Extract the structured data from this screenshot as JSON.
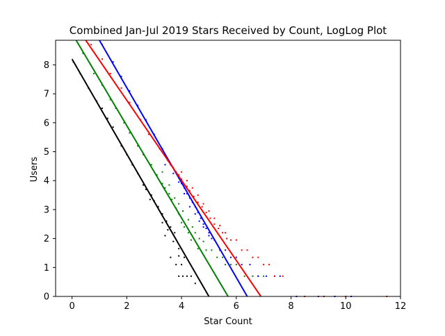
{
  "chart_data": {
    "type": "scatter",
    "title": "Combined Jan-Jul 2019 Stars Received by Count, LogLog Plot",
    "xlabel": "Star Count",
    "ylabel": "Users",
    "xlim": [
      -0.6,
      12
    ],
    "ylim": [
      0,
      8.85
    ],
    "xticks": [
      "0",
      "2",
      "4",
      "6",
      "8",
      "10",
      "12"
    ],
    "yticks": [
      "0",
      "1",
      "2",
      "3",
      "4",
      "5",
      "6",
      "7",
      "8"
    ],
    "grid": false,
    "legend": "none",
    "series": [
      {
        "color": "#000000",
        "fit_line": {
          "x": [
            0,
            5.0
          ],
          "y": [
            8.2,
            0
          ]
        },
        "points": [
          [
            0.05,
            8.1
          ],
          [
            0.3,
            7.7
          ],
          [
            0.6,
            7.2
          ],
          [
            0.9,
            6.75
          ],
          [
            1.1,
            6.5
          ],
          [
            1.3,
            6.15
          ],
          [
            1.5,
            5.85
          ],
          [
            1.8,
            5.2
          ],
          [
            2.0,
            4.9
          ],
          [
            2.2,
            4.55
          ],
          [
            2.4,
            4.25
          ],
          [
            2.6,
            3.85
          ],
          [
            2.7,
            3.7
          ],
          [
            2.9,
            3.5
          ],
          [
            3.0,
            3.3
          ],
          [
            3.15,
            3.1
          ],
          [
            3.3,
            2.85
          ],
          [
            3.45,
            2.6
          ],
          [
            3.6,
            2.4
          ],
          [
            3.75,
            2.2
          ],
          [
            2.85,
            3.35
          ],
          [
            3.3,
            2.55
          ],
          [
            3.5,
            2.3
          ],
          [
            3.4,
            2.1
          ],
          [
            3.7,
            1.9
          ],
          [
            3.9,
            1.65
          ],
          [
            3.6,
            1.35
          ],
          [
            3.9,
            1.4
          ],
          [
            4.1,
            1.35
          ],
          [
            4.0,
            1.1
          ],
          [
            3.8,
            1.1
          ],
          [
            3.9,
            0.7
          ],
          [
            4.05,
            0.7
          ],
          [
            4.2,
            0.7
          ],
          [
            4.35,
            0.7
          ],
          [
            4.5,
            0.45
          ]
        ]
      },
      {
        "color": "#008000",
        "fit_line": {
          "x": [
            0.15,
            5.7
          ],
          "y": [
            8.85,
            0
          ]
        },
        "points": [
          [
            0.4,
            8.4
          ],
          [
            0.8,
            7.7
          ],
          [
            1.1,
            7.3
          ],
          [
            1.4,
            6.8
          ],
          [
            1.6,
            6.5
          ],
          [
            1.9,
            6.0
          ],
          [
            2.1,
            5.65
          ],
          [
            2.4,
            5.2
          ],
          [
            2.6,
            4.9
          ],
          [
            2.9,
            4.55
          ],
          [
            3.1,
            4.2
          ],
          [
            3.3,
            3.9
          ],
          [
            3.4,
            3.75
          ],
          [
            3.55,
            3.55
          ],
          [
            3.65,
            3.35
          ],
          [
            3.8,
            3.05
          ],
          [
            3.9,
            2.85
          ],
          [
            4.0,
            2.55
          ],
          [
            4.1,
            2.4
          ],
          [
            4.25,
            2.2
          ],
          [
            4.35,
            1.95
          ],
          [
            3.3,
            4.3
          ],
          [
            3.55,
            3.85
          ],
          [
            3.75,
            3.4
          ],
          [
            3.9,
            3.2
          ],
          [
            4.05,
            2.95
          ],
          [
            4.25,
            2.65
          ],
          [
            4.4,
            2.4
          ],
          [
            4.5,
            2.2
          ],
          [
            4.65,
            2.0
          ],
          [
            4.8,
            1.9
          ],
          [
            4.6,
            1.65
          ],
          [
            4.9,
            1.6
          ],
          [
            5.1,
            1.6
          ],
          [
            5.3,
            1.35
          ],
          [
            5.5,
            1.35
          ],
          [
            5.6,
            1.1
          ],
          [
            5.8,
            1.1
          ],
          [
            6.0,
            1.1
          ],
          [
            6.3,
            0.7
          ],
          [
            6.6,
            0.7
          ],
          [
            6.8,
            0.7
          ],
          [
            7.0,
            0.7
          ]
        ]
      },
      {
        "color": "#0000ff",
        "fit_line": {
          "x": [
            1.0,
            6.4
          ],
          "y": [
            8.85,
            0
          ]
        },
        "points": [
          [
            1.1,
            8.7
          ],
          [
            1.5,
            8.1
          ],
          [
            1.8,
            7.6
          ],
          [
            2.1,
            7.1
          ],
          [
            2.4,
            6.6
          ],
          [
            2.7,
            6.1
          ],
          [
            3.0,
            5.6
          ],
          [
            3.3,
            5.1
          ],
          [
            3.5,
            4.7
          ],
          [
            3.6,
            4.55
          ],
          [
            3.8,
            4.3
          ],
          [
            3.9,
            4.1
          ],
          [
            4.0,
            3.9
          ],
          [
            4.1,
            3.75
          ],
          [
            4.2,
            3.55
          ],
          [
            4.3,
            3.4
          ],
          [
            4.4,
            3.25
          ],
          [
            4.5,
            3.1
          ],
          [
            4.6,
            2.9
          ],
          [
            4.7,
            2.7
          ],
          [
            4.8,
            2.5
          ],
          [
            4.9,
            2.35
          ],
          [
            5.0,
            2.2
          ],
          [
            5.1,
            2.0
          ],
          [
            3.4,
            4.55
          ],
          [
            3.7,
            4.25
          ],
          [
            3.9,
            3.95
          ],
          [
            4.1,
            3.55
          ],
          [
            4.3,
            3.1
          ],
          [
            4.5,
            2.85
          ],
          [
            4.65,
            2.6
          ],
          [
            4.8,
            2.4
          ],
          [
            5.0,
            2.1
          ],
          [
            5.2,
            1.95
          ],
          [
            5.4,
            1.6
          ],
          [
            5.6,
            1.6
          ],
          [
            5.8,
            1.35
          ],
          [
            6.0,
            1.35
          ],
          [
            6.2,
            1.1
          ],
          [
            6.5,
            1.1
          ],
          [
            6.8,
            0.7
          ],
          [
            7.1,
            0.7
          ],
          [
            7.4,
            0.7
          ],
          [
            7.6,
            0.7
          ],
          [
            8.2,
            0
          ],
          [
            9.0,
            0
          ],
          [
            9.6,
            0
          ],
          [
            10.2,
            0
          ]
        ]
      },
      {
        "color": "#ff0000",
        "fit_line": {
          "x": [
            0.5,
            6.9
          ],
          "y": [
            8.85,
            0
          ]
        },
        "points": [
          [
            0.7,
            8.7
          ],
          [
            1.1,
            8.2
          ],
          [
            1.4,
            7.7
          ],
          [
            1.8,
            7.2
          ],
          [
            2.1,
            6.7
          ],
          [
            2.5,
            6.1
          ],
          [
            2.8,
            5.6
          ],
          [
            3.2,
            5.1
          ],
          [
            3.5,
            4.7
          ],
          [
            3.7,
            4.45
          ],
          [
            3.9,
            4.2
          ],
          [
            4.0,
            4.05
          ],
          [
            4.2,
            3.8
          ],
          [
            4.3,
            3.65
          ],
          [
            4.45,
            3.45
          ],
          [
            4.6,
            3.25
          ],
          [
            4.75,
            3.1
          ],
          [
            4.9,
            2.9
          ],
          [
            5.05,
            2.7
          ],
          [
            5.2,
            2.5
          ],
          [
            5.35,
            2.35
          ],
          [
            5.5,
            2.2
          ],
          [
            5.65,
            2.0
          ],
          [
            4.0,
            4.3
          ],
          [
            4.2,
            4.0
          ],
          [
            4.4,
            3.75
          ],
          [
            4.6,
            3.5
          ],
          [
            4.8,
            3.2
          ],
          [
            5.0,
            2.95
          ],
          [
            5.2,
            2.7
          ],
          [
            5.4,
            2.45
          ],
          [
            5.6,
            2.2
          ],
          [
            5.8,
            1.95
          ],
          [
            6.0,
            1.95
          ],
          [
            6.2,
            1.6
          ],
          [
            6.4,
            1.6
          ],
          [
            6.6,
            1.35
          ],
          [
            6.8,
            1.35
          ],
          [
            7.0,
            1.1
          ],
          [
            7.2,
            1.1
          ],
          [
            7.4,
            0.7
          ],
          [
            7.7,
            0.7
          ],
          [
            8.5,
            0
          ],
          [
            9.2,
            0
          ],
          [
            10.0,
            0
          ],
          [
            11.5,
            0
          ]
        ]
      }
    ]
  }
}
